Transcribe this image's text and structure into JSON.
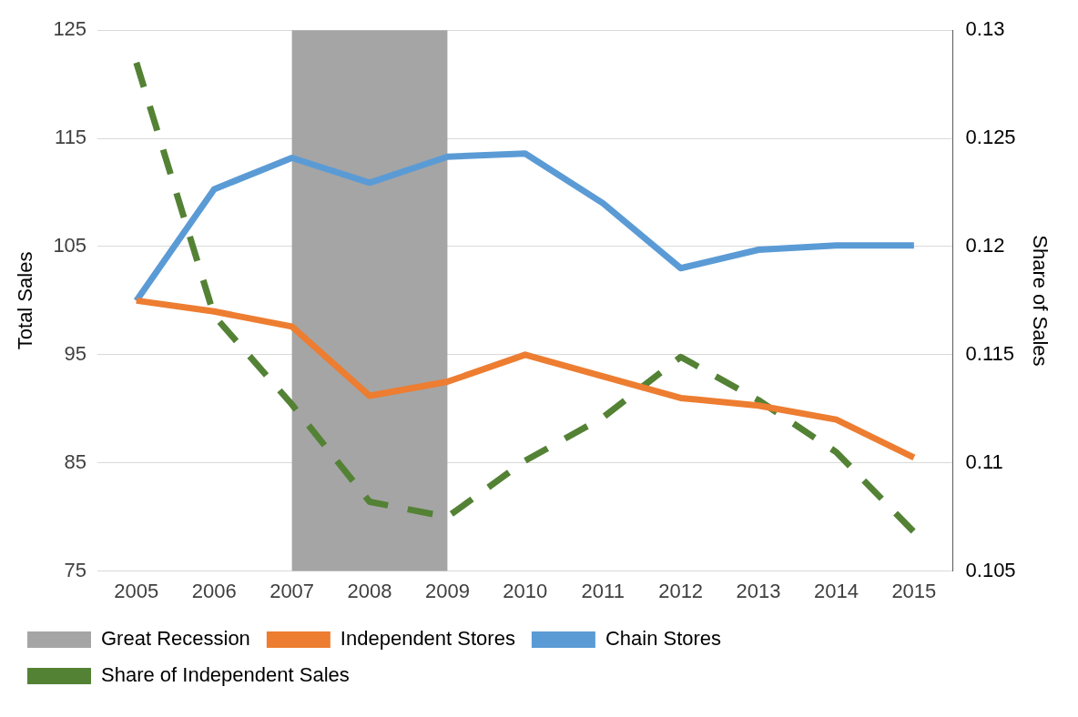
{
  "chart_data": {
    "type": "line",
    "xlabel": null,
    "ylabel": "Total Sales",
    "y2label": "Share of Sales",
    "categories": [
      "2005",
      "2006",
      "2007",
      "2008",
      "2009",
      "2010",
      "2011",
      "2012",
      "2013",
      "2014",
      "2015"
    ],
    "series": [
      {
        "name": "Independent Stores",
        "color": "#ed7d31",
        "values": [
          100,
          99,
          97.6,
          91.2,
          92.5,
          95,
          93,
          91,
          90.3,
          89,
          85.5
        ]
      },
      {
        "name": "Chain Stores",
        "color": "#5b9bd5",
        "values": [
          100,
          110.3,
          113.2,
          110.9,
          113.3,
          113.6,
          109,
          103,
          104.7,
          105.1,
          105.1
        ]
      },
      {
        "name": "Share of Independent Sales",
        "color": "#548235",
        "axis": "y2",
        "line_style": "dashed",
        "values": [
          0.1285,
          0.1168,
          0.1127,
          0.1082,
          0.1075,
          0.1101,
          0.1121,
          0.1149,
          0.1129,
          0.1105,
          0.1068
        ]
      }
    ],
    "bands": [
      {
        "axis": "x",
        "from": "2007",
        "to": "2009",
        "label": "Great Recession",
        "color": "#a5a5a5"
      }
    ],
    "ylim": [
      75,
      125
    ],
    "yticks": [
      75,
      85,
      95,
      105,
      115,
      125
    ],
    "y2lim": [
      0.105,
      0.13
    ],
    "y2ticks": [
      0.105,
      0.11,
      0.115,
      0.12,
      0.125,
      0.13
    ],
    "grid": "y",
    "legend": "bottom",
    "marker": "none"
  }
}
